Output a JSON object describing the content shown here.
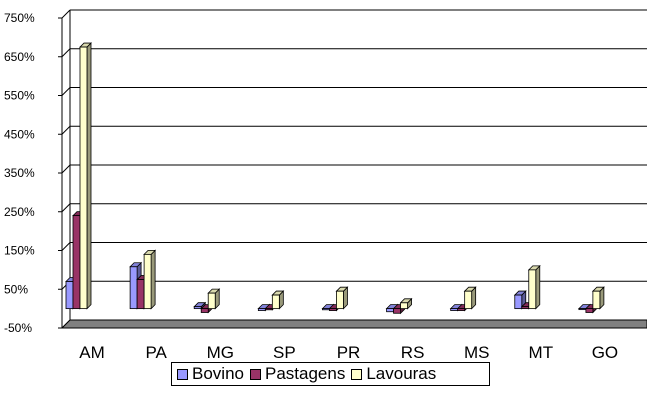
{
  "chart_data": {
    "type": "bar",
    "title": "",
    "xlabel": "",
    "ylabel": "",
    "ylim": [
      -50,
      750
    ],
    "yticks": [
      -50,
      50,
      150,
      250,
      350,
      450,
      550,
      650,
      750
    ],
    "ytick_labels": [
      "-50%",
      "50%",
      "150%",
      "250%",
      "350%",
      "450%",
      "550%",
      "650%",
      "750%"
    ],
    "grid": true,
    "legend_position": "bottom",
    "categories": [
      "AM",
      "PA",
      "MG",
      "SP",
      "PR",
      "RS",
      "MS",
      "MT",
      "GO"
    ],
    "series": [
      {
        "name": "Bovino",
        "color": "#9999FF",
        "values": [
          70,
          108,
          5,
          -5,
          -3,
          -8,
          -5,
          35,
          -2
        ]
      },
      {
        "name": "Pastagens",
        "color": "#993366",
        "values": [
          240,
          75,
          -10,
          -3,
          -5,
          -12,
          -5,
          5,
          -10
        ]
      },
      {
        "name": "Lavouras",
        "color": "#FFFFCC",
        "values": [
          675,
          140,
          40,
          35,
          45,
          15,
          45,
          100,
          45
        ]
      }
    ]
  }
}
